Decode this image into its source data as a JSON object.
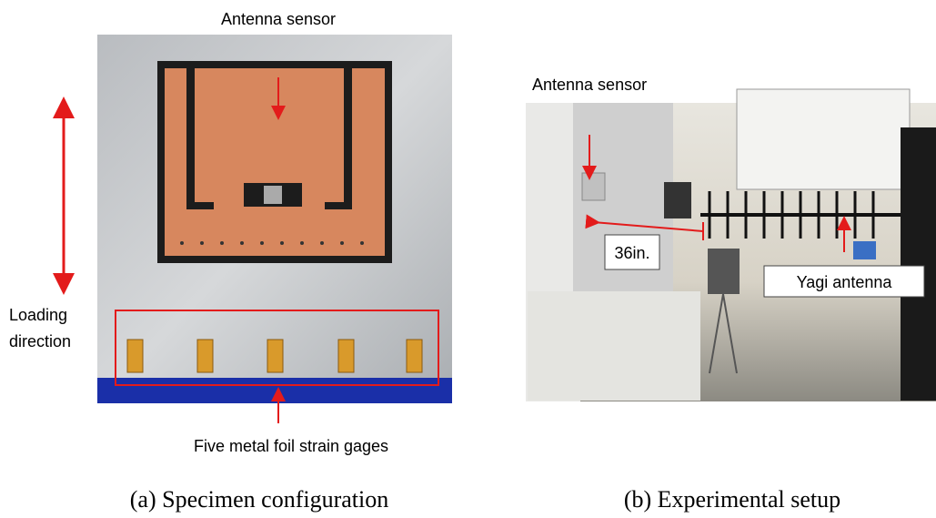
{
  "panels": [
    {
      "caption": "(a)  Specimen configuration",
      "labels": [
        "Antenna sensor",
        "Loading",
        "direction",
        "Five metal foil strain gages"
      ]
    },
    {
      "caption": "(b)  Experimental setup",
      "labels": [
        "Antenna sensor",
        "36in.",
        "Yagi antenna"
      ]
    }
  ]
}
